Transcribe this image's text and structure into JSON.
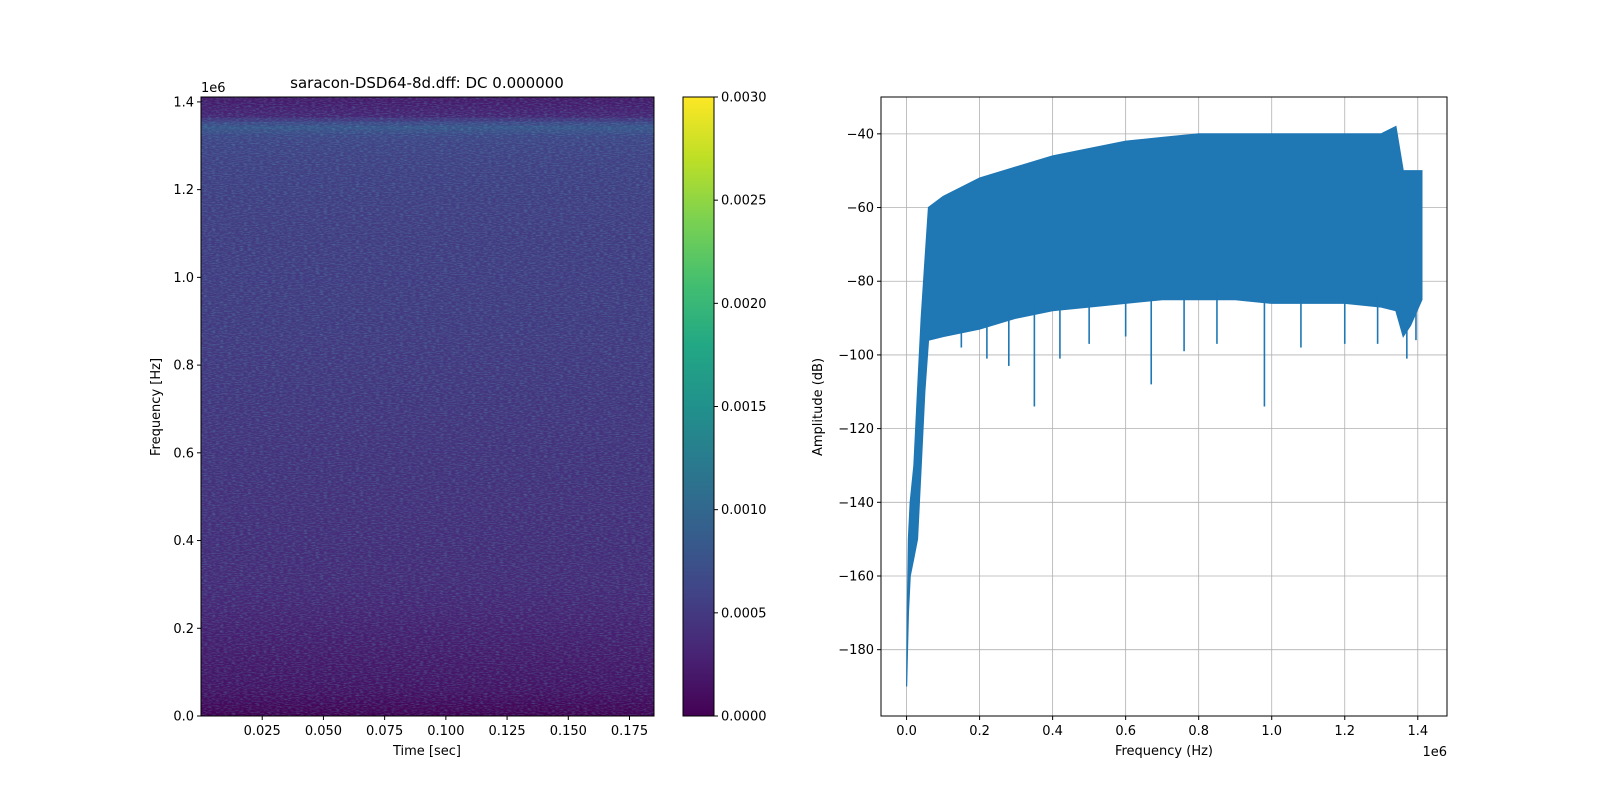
{
  "chart_data": [
    {
      "type": "heatmap",
      "title": "saracon-DSD64-8d.dff: DC 0.000000",
      "xlabel": "Time [sec]",
      "ylabel": "Frequency [Hz]",
      "xlim": [
        0.0,
        0.185
      ],
      "ylim": [
        0,
        1411200
      ],
      "x_ticks": [
        0.025,
        0.05,
        0.075,
        0.1,
        0.125,
        0.15,
        0.175
      ],
      "x_tick_labels": [
        "0.025",
        "0.050",
        "0.075",
        "0.100",
        "0.125",
        "0.150",
        "0.175"
      ],
      "y_ticks": [
        0,
        200000,
        400000,
        600000,
        800000,
        1000000,
        1200000,
        1400000
      ],
      "y_tick_labels": [
        "0.0",
        "0.2",
        "0.4",
        "0.6",
        "0.8",
        "1.0",
        "1.2",
        "1.4"
      ],
      "y_offset_label": "1e6",
      "colormap": "viridis",
      "colorbar": {
        "range": [
          0.0,
          0.003
        ],
        "ticks": [
          0.0,
          0.0005,
          0.001,
          0.0015,
          0.002,
          0.0025,
          0.003
        ],
        "tick_labels": [
          "0.0000",
          "0.0005",
          "0.0010",
          "0.0015",
          "0.0020",
          "0.0025",
          "0.0030"
        ]
      },
      "intensity_profile": {
        "frequency": [
          0,
          20000,
          60000,
          150000,
          300000,
          500000,
          700000,
          900000,
          1100000,
          1250000,
          1320000,
          1345000,
          1370000,
          1411200
        ],
        "mean_value": [
          0.0,
          5e-05,
          0.00015,
          0.00022,
          0.00035,
          0.0004,
          0.00045,
          0.0005,
          0.00052,
          0.00055,
          0.0006,
          0.0008,
          0.0003,
          0.0002
        ]
      }
    },
    {
      "type": "line",
      "title": "",
      "xlabel": "Frequency (Hz)",
      "ylabel": "Amplitude (dB)",
      "xlim": [
        -70000,
        1480000
      ],
      "ylim": [
        -198,
        -30
      ],
      "x_ticks": [
        0,
        200000,
        400000,
        600000,
        800000,
        1000000,
        1200000,
        1400000
      ],
      "x_tick_labels": [
        "0.0",
        "0.2",
        "0.4",
        "0.6",
        "0.8",
        "1.0",
        "1.2",
        "1.4"
      ],
      "x_offset_label": "1e6",
      "y_ticks": [
        -180,
        -160,
        -140,
        -120,
        -100,
        -80,
        -60,
        -40
      ],
      "y_tick_labels": [
        "−180",
        "−160",
        "−140",
        "−120",
        "−100",
        "−80",
        "−60",
        "−40"
      ],
      "grid": true,
      "color": "#1f77b4",
      "series": [
        {
          "x": [
            0,
            2000,
            5000,
            10000,
            20000,
            30000,
            40000,
            50000,
            60000,
            100000,
            200000,
            300000,
            400000,
            500000,
            600000,
            700000,
            800000,
            900000,
            1000000,
            1100000,
            1200000,
            1300000,
            1340000,
            1360000,
            1380000,
            1411200
          ],
          "y_upper": [
            -190,
            -170,
            -150,
            -140,
            -130,
            -110,
            -90,
            -75,
            -60,
            -57,
            -52,
            -49,
            -46,
            -44,
            -42,
            -41,
            -40,
            -40,
            -40,
            -40,
            -40,
            -40,
            -38,
            -50,
            -50,
            -50
          ],
          "y_lower": [
            -190,
            -182,
            -170,
            -160,
            -155,
            -150,
            -130,
            -110,
            -96,
            -95,
            -93,
            -90,
            -88,
            -87,
            -86,
            -85,
            -85,
            -85,
            -86,
            -86,
            -86,
            -87,
            -88,
            -95,
            -92,
            -85
          ],
          "dips": [
            [
              150000,
              -98
            ],
            [
              220000,
              -101
            ],
            [
              280000,
              -103
            ],
            [
              350000,
              -114
            ],
            [
              420000,
              -101
            ],
            [
              500000,
              -97
            ],
            [
              600000,
              -95
            ],
            [
              670000,
              -108
            ],
            [
              760000,
              -99
            ],
            [
              850000,
              -97
            ],
            [
              980000,
              -114
            ],
            [
              1080000,
              -98
            ],
            [
              1200000,
              -97
            ],
            [
              1290000,
              -97
            ],
            [
              1370000,
              -101
            ],
            [
              1395000,
              -96
            ]
          ]
        }
      ]
    }
  ]
}
